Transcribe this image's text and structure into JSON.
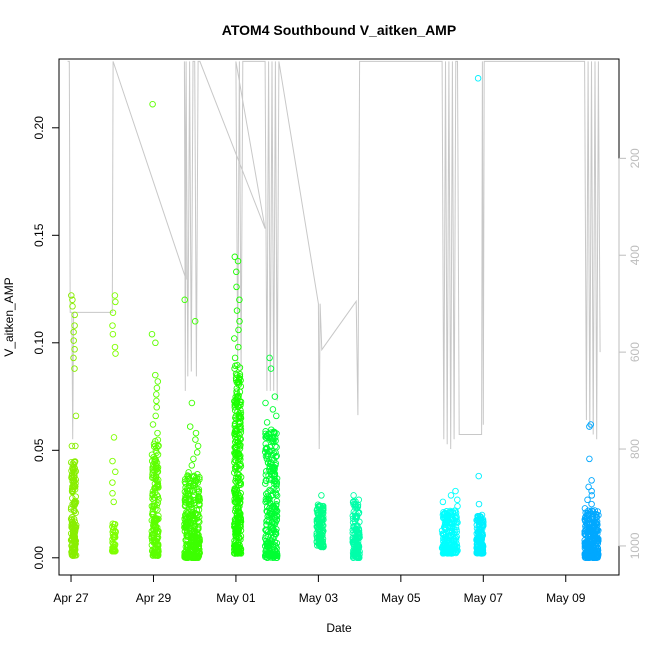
{
  "chart_data": {
    "type": "scatter",
    "title": "ATOM4 Southbound V_aitken_AMP",
    "xlabel": "Date",
    "ylabel": "V_aitken_AMP",
    "x_range": [
      "2017-04-26T17:00",
      "2017-05-10T07:00"
    ],
    "ylim": [
      -0.008,
      0.232
    ],
    "x_ticks": [
      {
        "date": "2017-04-27",
        "label": "Apr 27"
      },
      {
        "date": "2017-04-29",
        "label": "Apr 29"
      },
      {
        "date": "2017-05-01",
        "label": "May 01"
      },
      {
        "date": "2017-05-03",
        "label": "May 03"
      },
      {
        "date": "2017-05-05",
        "label": "May 05"
      },
      {
        "date": "2017-05-07",
        "label": "May 07"
      },
      {
        "date": "2017-05-09",
        "label": "May 09"
      }
    ],
    "y_ticks": [
      0.0,
      0.05,
      0.1,
      0.15,
      0.2
    ],
    "y_tick_labels": [
      "0.00",
      "0.05",
      "0.10",
      "0.15",
      "0.20"
    ],
    "secondary_axis": {
      "side": "right",
      "range": [
        1060,
        -5
      ],
      "ticks": [
        200,
        400,
        600,
        800,
        1000
      ],
      "tick_labels": [
        "200",
        "400",
        "600",
        "800",
        "1000"
      ],
      "color": "#bdbdbd"
    },
    "grid": false,
    "legend": "none",
    "marker": "open circle",
    "point_clusters": [
      {
        "start": "2017-04-27T00:00",
        "end": "2017-04-27T03:00",
        "ymin": 0.001,
        "ymax": 0.045,
        "count": 150,
        "color": "#88ee00",
        "outliers": [
          0.066,
          0.088,
          0.093,
          0.097,
          0.101,
          0.105,
          0.108,
          0.113,
          0.117,
          0.12,
          0.122,
          0.052,
          0.052
        ]
      },
      {
        "start": "2017-04-28T00:00",
        "end": "2017-04-28T02:00",
        "ymin": 0.003,
        "ymax": 0.016,
        "count": 40,
        "color": "#7fff00",
        "outliers": [
          0.026,
          0.03,
          0.035,
          0.04,
          0.045,
          0.056,
          0.095,
          0.098,
          0.104,
          0.108,
          0.114,
          0.119,
          0.122
        ]
      },
      {
        "start": "2017-04-28T23:00",
        "end": "2017-04-29T03:00",
        "ymin": 0.001,
        "ymax": 0.055,
        "count": 180,
        "color": "#5dff00",
        "outliers": [
          0.058,
          0.062,
          0.066,
          0.07,
          0.073,
          0.076,
          0.079,
          0.082,
          0.085,
          0.104,
          0.1,
          0.211
        ]
      },
      {
        "start": "2017-04-29T18:00",
        "end": "2017-04-30T03:00",
        "ymin": 0.0,
        "ymax": 0.04,
        "count": 300,
        "color": "#3dff00",
        "outliers": [
          0.043,
          0.046,
          0.049,
          0.052,
          0.055,
          0.058,
          0.061,
          0.072,
          0.11,
          0.12
        ]
      },
      {
        "start": "2017-04-30T23:00",
        "end": "2017-05-01T03:00",
        "ymin": 0.002,
        "ymax": 0.09,
        "count": 300,
        "color": "#1cff00",
        "outliers": [
          0.093,
          0.098,
          0.102,
          0.106,
          0.11,
          0.115,
          0.12,
          0.126,
          0.133,
          0.14,
          0.138
        ]
      },
      {
        "start": "2017-05-01T17:00",
        "end": "2017-05-02T00:00",
        "ymin": 0.0,
        "ymax": 0.06,
        "count": 260,
        "color": "#00ff33",
        "outliers": [
          0.063,
          0.066,
          0.069,
          0.072,
          0.075,
          0.088,
          0.093
        ]
      },
      {
        "start": "2017-05-02T23:00",
        "end": "2017-05-03T03:00",
        "ymin": 0.005,
        "ymax": 0.025,
        "count": 120,
        "color": "#00ff88",
        "outliers": [
          0.029
        ]
      },
      {
        "start": "2017-05-03T20:00",
        "end": "2017-05-04T00:00",
        "ymin": 0.0,
        "ymax": 0.027,
        "count": 140,
        "color": "#00ffaa",
        "outliers": [
          0.029
        ]
      },
      {
        "start": "2017-05-06T00:00",
        "end": "2017-05-06T09:00",
        "ymin": 0.002,
        "ymax": 0.022,
        "count": 200,
        "color": "#00ffff",
        "outliers": [
          0.024,
          0.026,
          0.027,
          0.029,
          0.031
        ]
      },
      {
        "start": "2017-05-06T20:00",
        "end": "2017-05-07T00:00",
        "ymin": 0.002,
        "ymax": 0.02,
        "count": 150,
        "color": "#00f0ff",
        "outliers": [
          0.025,
          0.038,
          0.223
        ]
      },
      {
        "start": "2017-05-09T11:00",
        "end": "2017-05-09T19:00",
        "ymin": 0.0,
        "ymax": 0.022,
        "count": 260,
        "color": "#00a8ff",
        "outliers": [
          0.023,
          0.025,
          0.027,
          0.029,
          0.031,
          0.033,
          0.036,
          0.046,
          0.061,
          0.062
        ]
      }
    ],
    "secondary_series": {
      "name": "",
      "color": "#c8c8c8",
      "path": [
        [
          "2017-04-26T22:00",
          0
        ],
        [
          "2017-04-26T23:00",
          0
        ],
        [
          "2017-04-26T23:30",
          518
        ],
        [
          "2017-04-27T00:30",
          518
        ],
        [
          "2017-04-27T01:00",
          780
        ],
        [
          "2017-04-27T01:30",
          518
        ],
        [
          "2017-04-28T00:00",
          518
        ],
        [
          "2017-04-28T00:30",
          0
        ],
        [
          "2017-04-29T19:00",
          450
        ],
        [
          "2017-04-29T18:00",
          0
        ],
        [
          "2017-04-29T18:30",
          680
        ],
        [
          "2017-04-29T19:00",
          0
        ],
        [
          "2017-04-29T20:00",
          650
        ],
        [
          "2017-04-29T21:00",
          0
        ],
        [
          "2017-04-29T22:00",
          640
        ],
        [
          "2017-04-29T23:00",
          0
        ],
        [
          "2017-04-30T00:00",
          0
        ],
        [
          "2017-04-30T01:00",
          650
        ],
        [
          "2017-04-30T02:00",
          0
        ],
        [
          "2017-04-30T03:00",
          0
        ],
        [
          "2017-05-01T17:00",
          345
        ],
        [
          "2017-05-01T00:00",
          0
        ],
        [
          "2017-05-01T01:00",
          620
        ],
        [
          "2017-05-01T02:00",
          0
        ],
        [
          "2017-05-01T03:00",
          640
        ],
        [
          "2017-05-01T04:00",
          0
        ],
        [
          "2017-05-01T17:00",
          0
        ],
        [
          "2017-05-01T18:00",
          680
        ],
        [
          "2017-05-01T19:00",
          0
        ],
        [
          "2017-05-01T20:00",
          680
        ],
        [
          "2017-05-01T21:00",
          0
        ],
        [
          "2017-05-01T22:00",
          680
        ],
        [
          "2017-05-01T23:00",
          0
        ],
        [
          "2017-05-02T00:00",
          700
        ],
        [
          "2017-05-02T01:00",
          0
        ],
        [
          "2017-05-03T00:00",
          500
        ],
        [
          "2017-05-03T00:30",
          800
        ],
        [
          "2017-05-03T01:00",
          500
        ],
        [
          "2017-05-03T02:00",
          595
        ],
        [
          "2017-05-03T22:00",
          495
        ],
        [
          "2017-05-03T23:00",
          730
        ],
        [
          "2017-05-04T00:00",
          0
        ],
        [
          "2017-05-05T22:00",
          0
        ],
        [
          "2017-05-06T00:00",
          0
        ],
        [
          "2017-05-06T01:00",
          780
        ],
        [
          "2017-05-06T02:00",
          0
        ],
        [
          "2017-05-06T03:00",
          790
        ],
        [
          "2017-05-06T04:00",
          0
        ],
        [
          "2017-05-06T05:00",
          800
        ],
        [
          "2017-05-06T06:00",
          0
        ],
        [
          "2017-05-06T07:00",
          780
        ],
        [
          "2017-05-06T08:00",
          0
        ],
        [
          "2017-05-06T09:00",
          0
        ],
        [
          "2017-05-06T10:00",
          770
        ],
        [
          "2017-05-06T11:00",
          770
        ],
        [
          "2017-05-06T23:00",
          770
        ],
        [
          "2017-05-06T23:30",
          0
        ],
        [
          "2017-05-07T00:00",
          750
        ],
        [
          "2017-05-07T00:30",
          0
        ],
        [
          "2017-05-09T11:00",
          0
        ],
        [
          "2017-05-09T12:00",
          740
        ],
        [
          "2017-05-09T13:00",
          0
        ],
        [
          "2017-05-09T14:00",
          760
        ],
        [
          "2017-05-09T15:00",
          0
        ],
        [
          "2017-05-09T16:00",
          770
        ],
        [
          "2017-05-09T17:00",
          0
        ],
        [
          "2017-05-09T18:00",
          780
        ],
        [
          "2017-05-09T19:00",
          0
        ],
        [
          "2017-05-09T20:00",
          600
        ]
      ]
    }
  }
}
